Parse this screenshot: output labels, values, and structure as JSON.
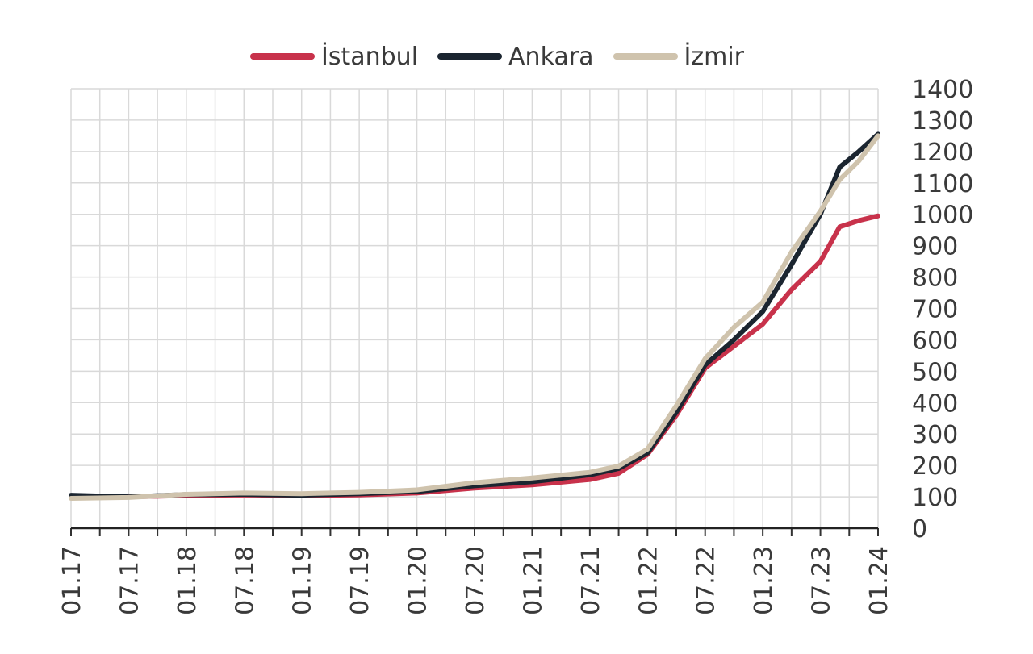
{
  "chart_data": {
    "type": "line",
    "title": "",
    "xlabel": "",
    "ylabel": "",
    "ylim": [
      0,
      1400
    ],
    "y_axis_position": "right",
    "y_ticks": [
      0,
      100,
      200,
      300,
      400,
      500,
      600,
      700,
      800,
      900,
      1000,
      1100,
      1200,
      1300,
      1400
    ],
    "x_tick_labels": [
      "01.17",
      "07.17",
      "01.18",
      "07.18",
      "01.19",
      "07.19",
      "01.20",
      "07.20",
      "01.21",
      "07.21",
      "01.22",
      "07.22",
      "01.23",
      "07.23",
      "01.24"
    ],
    "grid": true,
    "legend_position": "top-center",
    "x_axis_rotation": "vertical",
    "series": [
      {
        "name": "İstanbul",
        "color": "#c8324b",
        "points": [
          [
            "01.17",
            100
          ],
          [
            "07.17",
            100
          ],
          [
            "01.18",
            104
          ],
          [
            "07.18",
            106
          ],
          [
            "01.19",
            104
          ],
          [
            "07.19",
            106
          ],
          [
            "01.20",
            112
          ],
          [
            "07.20",
            128
          ],
          [
            "01.21",
            138
          ],
          [
            "07.21",
            155
          ],
          [
            "10.21",
            175
          ],
          [
            "01.22",
            235
          ],
          [
            "04.22",
            360
          ],
          [
            "07.22",
            510
          ],
          [
            "10.22",
            580
          ],
          [
            "01.23",
            650
          ],
          [
            "04.23",
            760
          ],
          [
            "07.23",
            850
          ],
          [
            "09.23",
            960
          ],
          [
            "11.23",
            980
          ],
          [
            "01.24",
            995
          ]
        ]
      },
      {
        "name": "Ankara",
        "color": "#1b2530",
        "points": [
          [
            "01.17",
            105
          ],
          [
            "07.17",
            100
          ],
          [
            "01.18",
            107
          ],
          [
            "07.18",
            108
          ],
          [
            "01.19",
            105
          ],
          [
            "07.19",
            110
          ],
          [
            "01.20",
            117
          ],
          [
            "07.20",
            135
          ],
          [
            "01.21",
            148
          ],
          [
            "07.21",
            170
          ],
          [
            "10.21",
            190
          ],
          [
            "01.22",
            240
          ],
          [
            "04.22",
            370
          ],
          [
            "07.22",
            520
          ],
          [
            "10.22",
            600
          ],
          [
            "01.23",
            690
          ],
          [
            "04.23",
            840
          ],
          [
            "07.23",
            1000
          ],
          [
            "09.23",
            1150
          ],
          [
            "11.23",
            1200
          ],
          [
            "01.24",
            1255
          ]
        ]
      },
      {
        "name": "İzmir",
        "color": "#cfc3ad",
        "points": [
          [
            "01.17",
            95
          ],
          [
            "07.17",
            98
          ],
          [
            "01.18",
            108
          ],
          [
            "07.18",
            112
          ],
          [
            "01.19",
            110
          ],
          [
            "07.19",
            114
          ],
          [
            "01.20",
            122
          ],
          [
            "07.20",
            145
          ],
          [
            "01.21",
            160
          ],
          [
            "07.21",
            178
          ],
          [
            "10.21",
            198
          ],
          [
            "01.22",
            252
          ],
          [
            "04.22",
            390
          ],
          [
            "07.22",
            540
          ],
          [
            "10.22",
            640
          ],
          [
            "01.23",
            720
          ],
          [
            "04.23",
            880
          ],
          [
            "07.23",
            1010
          ],
          [
            "09.23",
            1110
          ],
          [
            "11.23",
            1170
          ],
          [
            "01.24",
            1250
          ]
        ]
      }
    ]
  }
}
